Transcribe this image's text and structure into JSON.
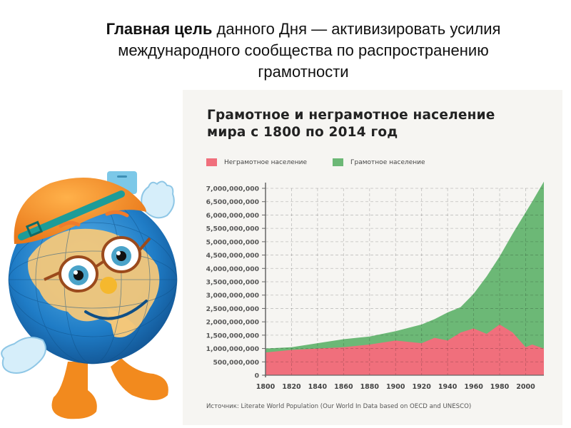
{
  "slide": {
    "title_bold": "Главная цель",
    "title_rest_line1": " данного Дня — активизировать усилия",
    "title_line2": "международного сообщества по распространению",
    "title_line3": "грамотности"
  },
  "mascot": {
    "description": "Cartoon globe character with orange cap, glasses and gloves"
  },
  "chart": {
    "title_line1": "Грамотное и неграмотное население",
    "title_line2": "мира с 1800 по 2014 год",
    "legend": [
      {
        "label": "Неграмотное население",
        "color": "#f06f7c"
      },
      {
        "label": "Грамотное население",
        "color": "#6cb876"
      }
    ],
    "source": "Источник: Literate World Population (Our World In Data based on OECD and UNESCO)"
  },
  "chart_data": {
    "type": "area",
    "stacked": true,
    "title": "Грамотное и неграмотное население мира с 1800 по 2014 год",
    "xlabel": "",
    "ylabel": "",
    "x": [
      1800,
      1820,
      1840,
      1860,
      1880,
      1900,
      1920,
      1930,
      1940,
      1950,
      1960,
      1970,
      1980,
      1990,
      2000,
      2005,
      2014
    ],
    "series": [
      {
        "name": "Неграмотное население",
        "color": "#f06f7c",
        "values": [
          850000000,
          950000000,
          1000000000,
          1050000000,
          1150000000,
          1300000000,
          1200000000,
          1400000000,
          1300000000,
          1600000000,
          1750000000,
          1550000000,
          1900000000,
          1600000000,
          1050000000,
          1150000000,
          1000000000
        ]
      },
      {
        "name": "Грамотное население",
        "color": "#6cb876",
        "values": [
          150000000,
          100000000,
          200000000,
          300000000,
          300000000,
          350000000,
          700000000,
          700000000,
          1050000000,
          950000000,
          1300000000,
          2150000000,
          2550000000,
          3700000000,
          5050000000,
          5350000000,
          6250000000
        ]
      }
    ],
    "yticks": [
      "0",
      "500,000,000",
      "1,000,000,000",
      "1,500,000,000",
      "2,000,000,000",
      "2,500,000,000",
      "3,000,000,000",
      "3,500,000,000",
      "4,000,000,000",
      "4,500,000,000",
      "5,000,000,000",
      "5,500,000,000",
      "6,000,000,000",
      "6,500,000,000",
      "7,000,000,000"
    ],
    "xticks": [
      "1800",
      "1820",
      "1840",
      "1860",
      "1880",
      "1900",
      "1920",
      "1940",
      "1960",
      "1980",
      "2000"
    ],
    "xlim": [
      1800,
      2014
    ],
    "ylim": [
      0,
      7000000000
    ],
    "grid": true,
    "legend_position": "top-left",
    "source": "Источник: Literate World Population (Our World In Data based on OECD and UNESCO)"
  }
}
